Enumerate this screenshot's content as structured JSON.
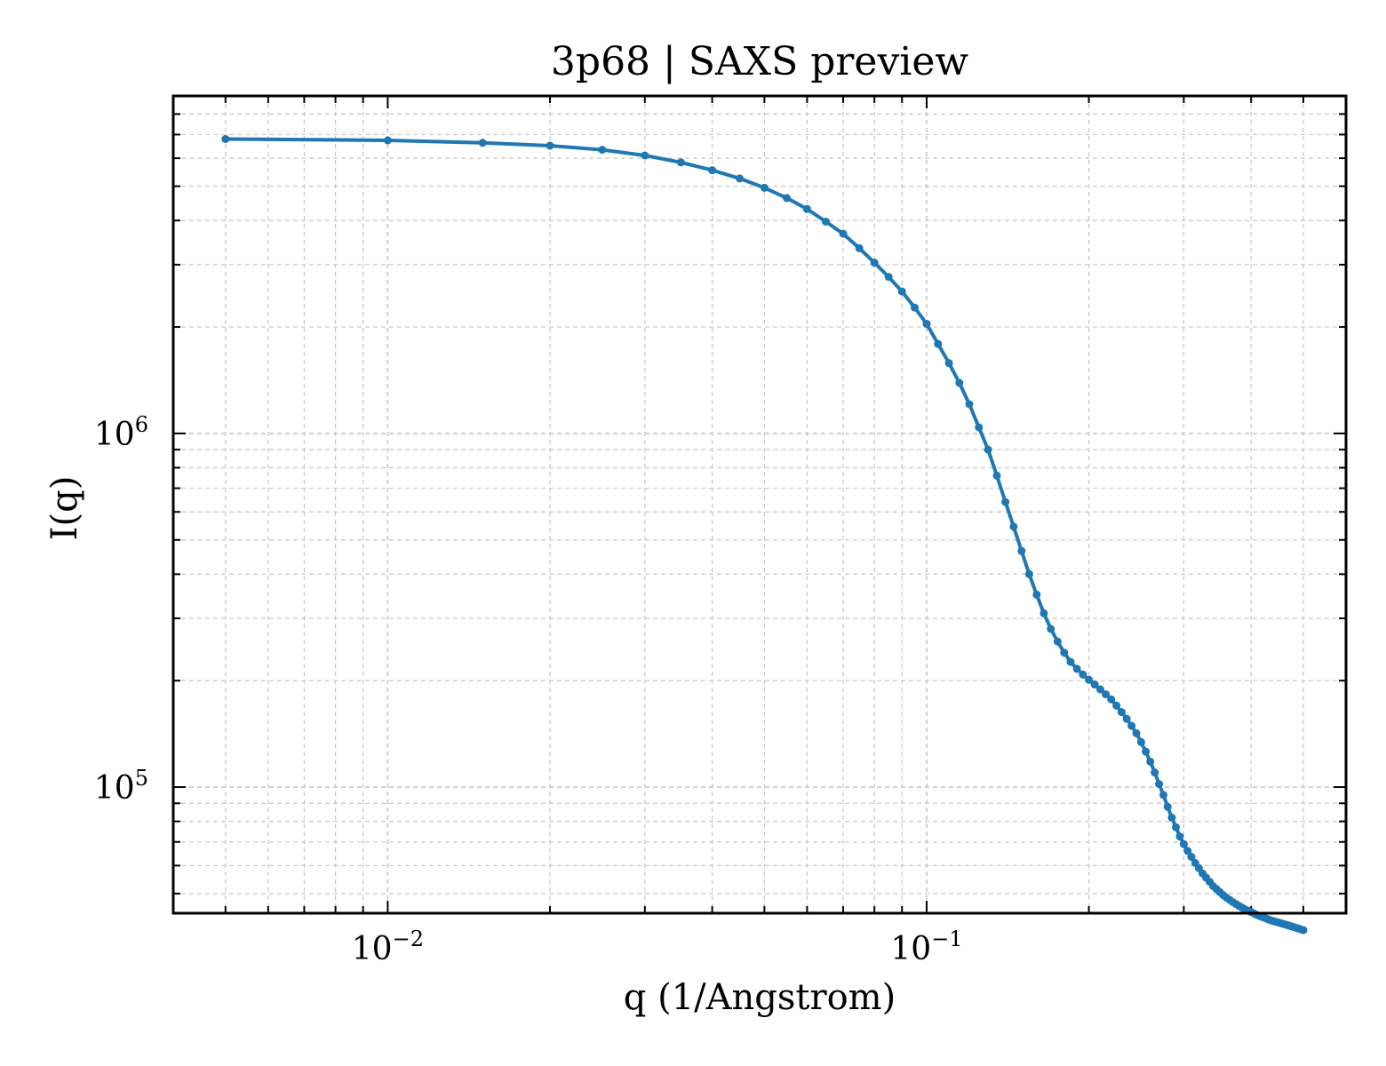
{
  "chart_data": {
    "type": "line",
    "title": "3p68 | SAXS preview",
    "xlabel": "q (1/Angstrom)",
    "ylabel": "I(q)",
    "xscale": "log",
    "yscale": "log",
    "xlim": [
      0.004,
      0.6
    ],
    "ylim": [
      44000,
      9000000
    ],
    "grid": true,
    "x_ticks": [
      {
        "value": 0.01,
        "base": "10",
        "exp": "−2"
      },
      {
        "value": 0.1,
        "base": "10",
        "exp": "−1"
      }
    ],
    "y_ticks": [
      {
        "value": 100000,
        "base": "10",
        "exp": "5"
      },
      {
        "value": 1000000,
        "base": "10",
        "exp": "6"
      }
    ],
    "color": "#1f77b4",
    "x": [
      0.005,
      0.01,
      0.015,
      0.02,
      0.025,
      0.03,
      0.035,
      0.04,
      0.045,
      0.05,
      0.055,
      0.06,
      0.065,
      0.07,
      0.075,
      0.08,
      0.085,
      0.09,
      0.095,
      0.1,
      0.105,
      0.11,
      0.115,
      0.12,
      0.125,
      0.13,
      0.135,
      0.14,
      0.145,
      0.15,
      0.155,
      0.16,
      0.165,
      0.17,
      0.175,
      0.18,
      0.185,
      0.19,
      0.195,
      0.2,
      0.205,
      0.21,
      0.215,
      0.22,
      0.225,
      0.23,
      0.235,
      0.24,
      0.245,
      0.25,
      0.255,
      0.26,
      0.265,
      0.27,
      0.275,
      0.28,
      0.285,
      0.29,
      0.295,
      0.3,
      0.305,
      0.31,
      0.315,
      0.32,
      0.325,
      0.33,
      0.335,
      0.34,
      0.345,
      0.35,
      0.355,
      0.36,
      0.365,
      0.37,
      0.375,
      0.38,
      0.385,
      0.39,
      0.395,
      0.4,
      0.405,
      0.41,
      0.415,
      0.42,
      0.425,
      0.43,
      0.435,
      0.44,
      0.445,
      0.45,
      0.455,
      0.46,
      0.465,
      0.47,
      0.475,
      0.48,
      0.485,
      0.49,
      0.495,
      0.5
    ],
    "y": [
      6800000,
      6740000,
      6630000,
      6510000,
      6340000,
      6110000,
      5840000,
      5550000,
      5260000,
      4950000,
      4630000,
      4310000,
      3970000,
      3670000,
      3340000,
      3040000,
      2770000,
      2520000,
      2270000,
      2040000,
      1790000,
      1580000,
      1390000,
      1210000,
      1040000,
      900000,
      760000,
      640000,
      545000,
      465000,
      400000,
      350000,
      310000,
      280000,
      258000,
      240000,
      226000,
      216000,
      208000,
      201000,
      195000,
      189000,
      183000,
      177000,
      170000,
      163000,
      156000,
      149000,
      142000,
      134000,
      126000,
      118000,
      110000,
      102000,
      95000,
      88000,
      82000,
      77000,
      72500,
      69000,
      66000,
      63500,
      61000,
      59000,
      57000,
      55500,
      54000,
      52500,
      51500,
      50500,
      49500,
      48700,
      48000,
      47300,
      46700,
      46100,
      45600,
      45100,
      44700,
      44300,
      43900,
      43500,
      43200,
      42900,
      42600,
      42300,
      42000,
      41800,
      41600,
      41400,
      41200,
      41000,
      40800,
      40600,
      40400,
      40200,
      40000,
      39800,
      39600,
      39400
    ]
  }
}
